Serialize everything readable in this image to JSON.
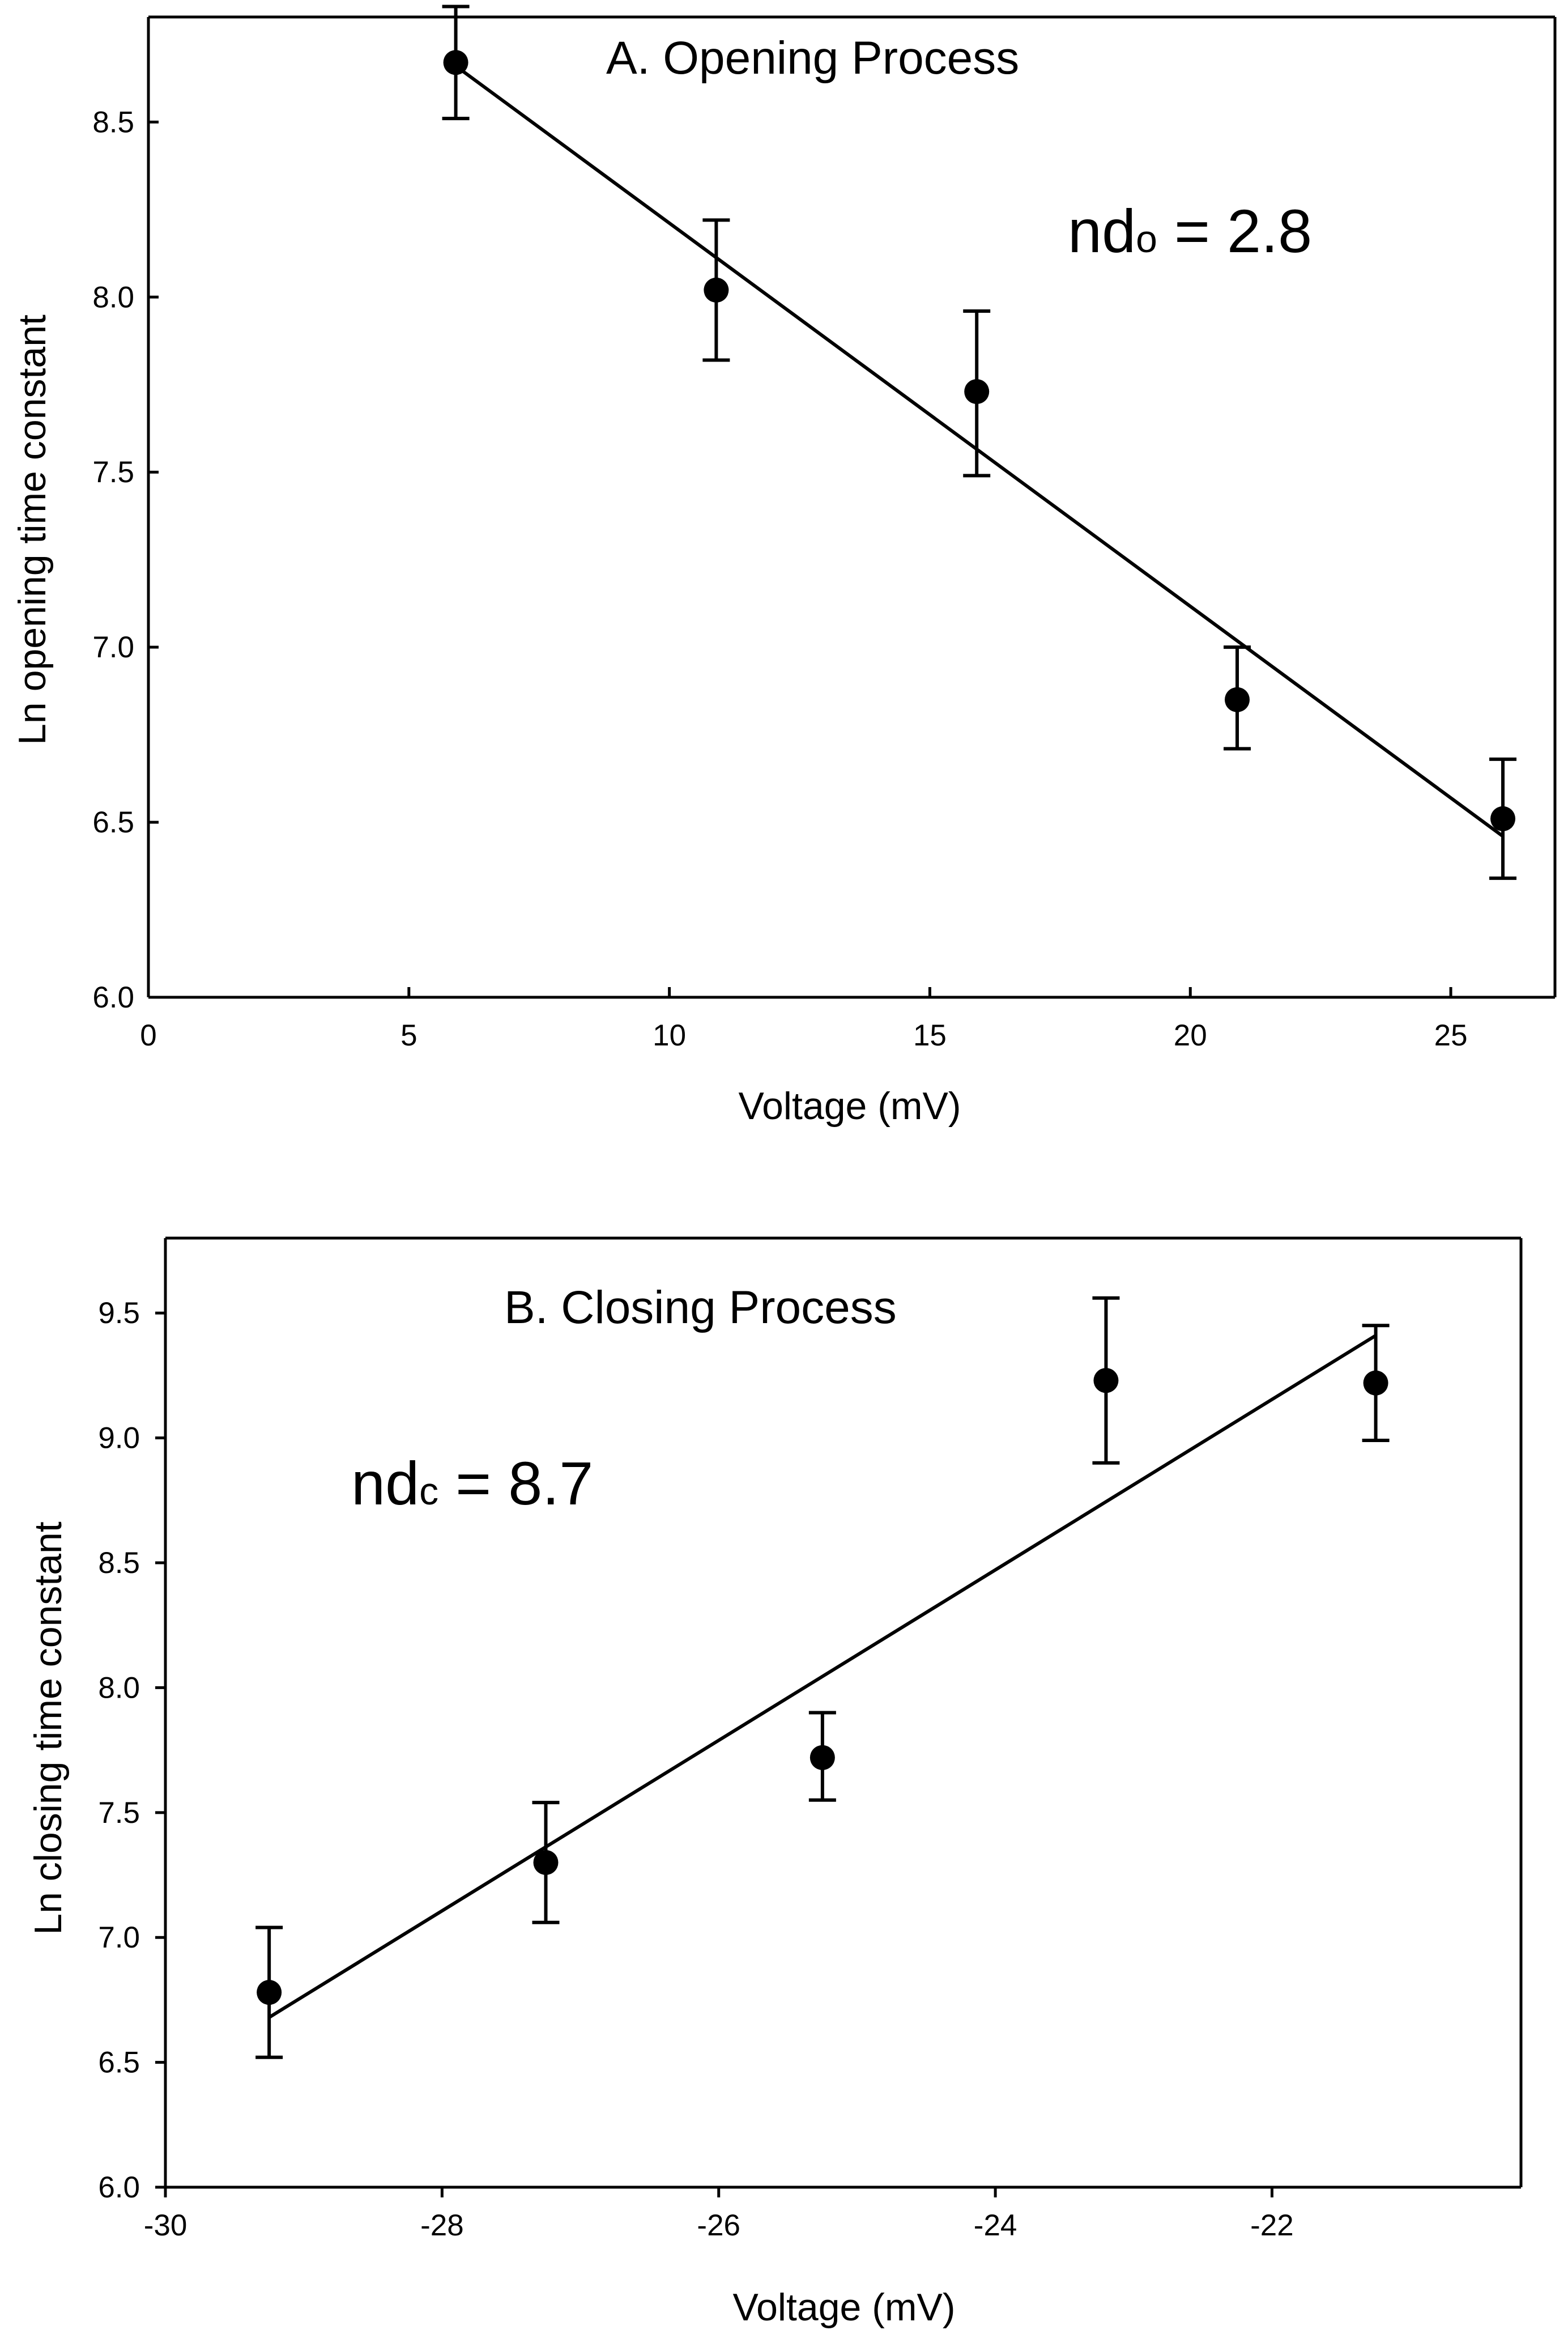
{
  "chart_data": [
    {
      "type": "scatter",
      "title": "A. Opening Process",
      "xlabel": "Voltage (mV)",
      "ylabel": "Ln opening time constant",
      "xlim": [
        0,
        27
      ],
      "ylim": [
        6.0,
        8.8
      ],
      "xticks": [
        0,
        5,
        10,
        15,
        20,
        25
      ],
      "xtick_labels": [
        "0",
        "5",
        "10",
        "15",
        "20",
        "25"
      ],
      "yticks": [
        6.0,
        6.5,
        7.0,
        7.5,
        8.0,
        8.5
      ],
      "ytick_labels": [
        "6.0",
        "6.5",
        "7.0",
        "7.5",
        "8.0",
        "8.5"
      ],
      "annotation": {
        "prefix": "nd",
        "sub": "o",
        "suffix": " = 2.8"
      },
      "points": [
        {
          "x": 5.9,
          "y": 8.67,
          "err_low": 8.51,
          "err_high": 8.83
        },
        {
          "x": 10.9,
          "y": 8.02,
          "err_low": 7.82,
          "err_high": 8.22
        },
        {
          "x": 15.9,
          "y": 7.73,
          "err_low": 7.49,
          "err_high": 7.96
        },
        {
          "x": 20.9,
          "y": 6.85,
          "err_low": 6.71,
          "err_high": 7.0
        },
        {
          "x": 26.0,
          "y": 6.51,
          "err_low": 6.34,
          "err_high": 6.68
        }
      ],
      "fit_line": {
        "x": [
          5.9,
          26.0
        ],
        "y": [
          8.66,
          6.46
        ]
      }
    },
    {
      "type": "scatter",
      "title": "B. Closing Process",
      "xlabel": "Voltage (mV)",
      "ylabel": "Ln closing time constant",
      "xlim": [
        -30,
        -20.2
      ],
      "ylim": [
        6.0,
        9.8
      ],
      "xticks": [
        -30,
        -28,
        -26,
        -24,
        -22
      ],
      "xtick_labels": [
        "-30",
        "-28",
        "-26",
        "-24",
        "-22"
      ],
      "yticks": [
        6.0,
        6.5,
        7.0,
        7.5,
        8.0,
        8.5,
        9.0,
        9.5
      ],
      "ytick_labels": [
        "6.0",
        "6.5",
        "7.0",
        "7.5",
        "8.0",
        "8.5",
        "9.0",
        "9.5"
      ],
      "annotation": {
        "prefix": "nd",
        "sub": "c",
        "suffix": " = 8.7"
      },
      "points": [
        {
          "x": -29.25,
          "y": 6.78,
          "err_low": 6.52,
          "err_high": 7.04
        },
        {
          "x": -27.25,
          "y": 7.3,
          "err_low": 7.06,
          "err_high": 7.54
        },
        {
          "x": -25.25,
          "y": 7.72,
          "err_low": 7.55,
          "err_high": 7.9
        },
        {
          "x": -23.2,
          "y": 9.23,
          "err_low": 8.9,
          "err_high": 9.56
        },
        {
          "x": -21.25,
          "y": 9.22,
          "err_low": 8.99,
          "err_high": 9.45
        }
      ],
      "fit_line": {
        "x": [
          -29.25,
          -21.25
        ],
        "y": [
          6.68,
          9.41
        ]
      }
    }
  ]
}
